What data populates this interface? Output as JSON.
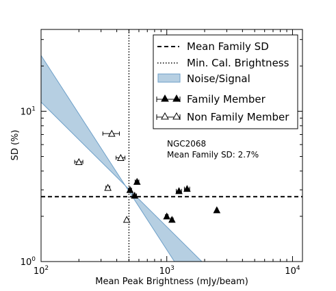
{
  "chart_data": {
    "type": "scatter",
    "title": "",
    "xlabel": "Mean Peak Brightness (mJy/beam)",
    "ylabel": "SD (%)",
    "x_scale": "log",
    "y_scale": "log",
    "xlim": [
      100,
      12000
    ],
    "ylim": [
      1,
      35
    ],
    "x_ticks": [
      {
        "value": 100,
        "base": "10",
        "exp": "2"
      },
      {
        "value": 1000,
        "base": "10",
        "exp": "3"
      },
      {
        "value": 10000,
        "base": "10",
        "exp": "4"
      }
    ],
    "y_ticks": [
      {
        "value": 1,
        "base": "10",
        "exp": "0"
      },
      {
        "value": 10,
        "base": "10",
        "exp": "1"
      }
    ],
    "grid": false,
    "legend_position": "top-right",
    "legend": [
      {
        "label": "Mean Family SD",
        "style": "dashed-line"
      },
      {
        "label": "Min. Cal. Brightness",
        "style": "dotted-line"
      },
      {
        "label": "Noise/Signal",
        "style": "band"
      },
      {
        "label": "Family Member",
        "style": "filled-triangle"
      },
      {
        "label": "Non Family Member",
        "style": "open-triangle"
      }
    ],
    "annotation": {
      "line1": "NGC2068",
      "line2": "Mean Family SD: 2.7%"
    },
    "mean_family_sd": 2.7,
    "min_cal_brightness": 500,
    "noise_band": {
      "upper": [
        [
          100,
          23.5
        ],
        [
          1150,
          1.0
        ]
      ],
      "lower": [
        [
          100,
          11.5
        ],
        [
          1900,
          1.0
        ]
      ]
    },
    "series": [
      {
        "name": "Family Member",
        "marker": "filled-triangle",
        "points": [
          {
            "x": 510,
            "y": 3.0,
            "xerr": 15
          },
          {
            "x": 555,
            "y": 2.75,
            "xerr": 20
          },
          {
            "x": 580,
            "y": 3.4,
            "xerr": 20
          },
          {
            "x": 1000,
            "y": 2.0,
            "xerr": 25
          },
          {
            "x": 1100,
            "y": 1.9,
            "xerr": 25
          },
          {
            "x": 1250,
            "y": 2.95,
            "xerr": 60
          },
          {
            "x": 1450,
            "y": 3.05,
            "xerr": 70
          },
          {
            "x": 2500,
            "y": 2.2,
            "xerr": 40
          }
        ]
      },
      {
        "name": "Non Family Member",
        "marker": "open-triangle",
        "points": [
          {
            "x": 200,
            "y": 4.6,
            "xerr": 15
          },
          {
            "x": 340,
            "y": 3.1,
            "xerr": 12
          },
          {
            "x": 365,
            "y": 7.1,
            "xerr": 55
          },
          {
            "x": 430,
            "y": 4.9,
            "xerr": 35
          },
          {
            "x": 480,
            "y": 1.9,
            "xerr": 5
          }
        ]
      }
    ],
    "colors": {
      "band_fill": "#b6cfe2",
      "band_edge": "#6d9fc8",
      "marker": "#000000"
    }
  }
}
